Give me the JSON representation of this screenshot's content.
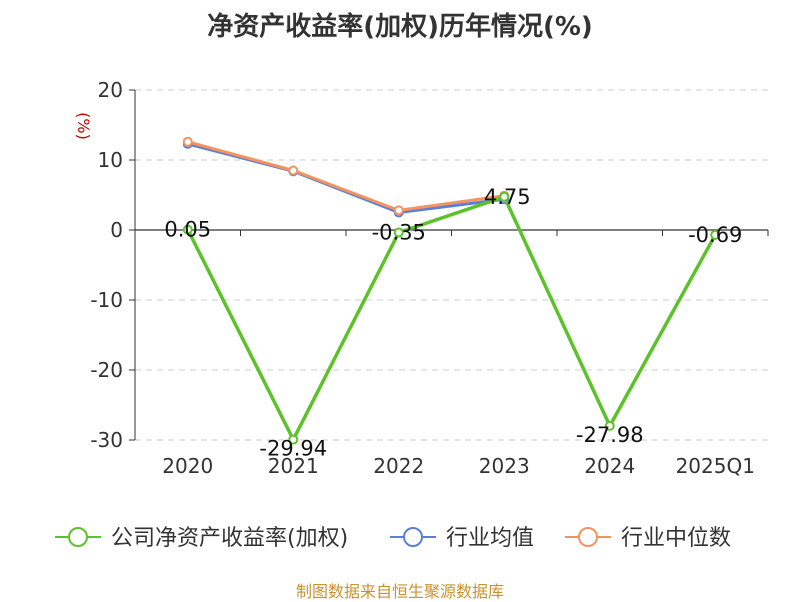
{
  "chart_data": {
    "type": "line",
    "title": "净资产收益率(加权)历年情况(%)",
    "ylabel": "(%)",
    "categories": [
      "2020",
      "2021",
      "2022",
      "2023",
      "2024",
      "2025Q1"
    ],
    "ylim": [
      -30,
      20
    ],
    "yticks": [
      20,
      10,
      0,
      -10,
      -20,
      -30
    ],
    "grid": true,
    "legend_position": "bottom",
    "series": [
      {
        "name": "公司净资产收益率(加权)",
        "color": "#5cc22a",
        "values": [
          0.05,
          -29.94,
          -0.35,
          4.75,
          -27.98,
          -0.69
        ],
        "labels": [
          "0.05",
          "-29.94",
          "-0.35",
          "4.75",
          "-27.98",
          "-0.69"
        ]
      },
      {
        "name": "行业均值",
        "color": "#5b7fd6",
        "values": [
          12.3,
          8.4,
          2.5,
          4.4,
          null,
          null
        ]
      },
      {
        "name": "行业中位数",
        "color": "#f4935f",
        "values": [
          12.6,
          8.5,
          2.8,
          4.9,
          null,
          null
        ]
      }
    ]
  },
  "source": "制图数据来自恒生聚源数据库"
}
